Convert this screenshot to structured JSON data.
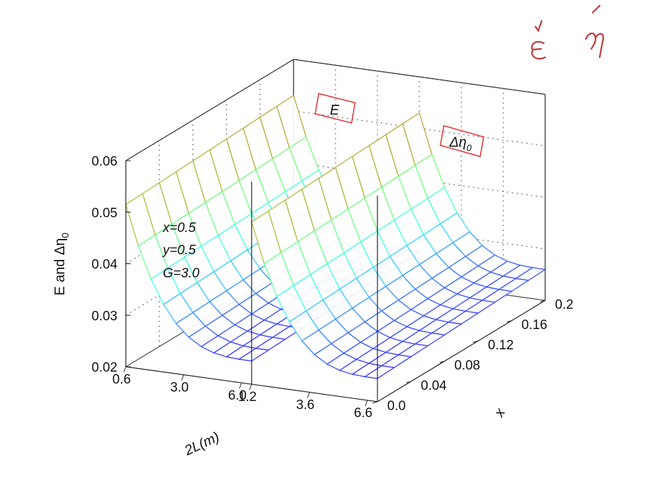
{
  "chart_data": {
    "type": "surface",
    "zlabel": "E and Δη",
    "zlabel_sub": "0",
    "zticks": [
      "0.02",
      "0.03",
      "0.04",
      "0.05",
      "0.06"
    ],
    "zlim": [
      0.02,
      0.06
    ],
    "xlabel": "x",
    "xticks": [
      "0.0",
      "0.04",
      "0.08",
      "0.12",
      "0.16",
      "0.2"
    ],
    "xlim": [
      0.0,
      0.2
    ],
    "panel_left_ticks": [
      "0.6",
      "3.0",
      "6.0"
    ],
    "panel_right_ticks": [
      "1.2",
      "3.6",
      "6.6"
    ],
    "ylabel": "2L(m)",
    "annotations": [
      "x=0.5",
      "y=0.5",
      "G=3.0"
    ],
    "series": [
      {
        "name": "E",
        "curve_minimum": 0.0245,
        "edge_value": 0.0515,
        "x_rise": 0.0015
      },
      {
        "name": "Δη",
        "name_sub": "0",
        "curve_minimum": 0.0245,
        "edge_value": 0.0515,
        "x_rise": 0.0015
      }
    ],
    "colormap": [
      "#3b38ff",
      "#39ffff",
      "#8cff4a",
      "#ff2a2a"
    ],
    "grid": true,
    "handwritten_marks": [
      "έ",
      "ή"
    ]
  }
}
